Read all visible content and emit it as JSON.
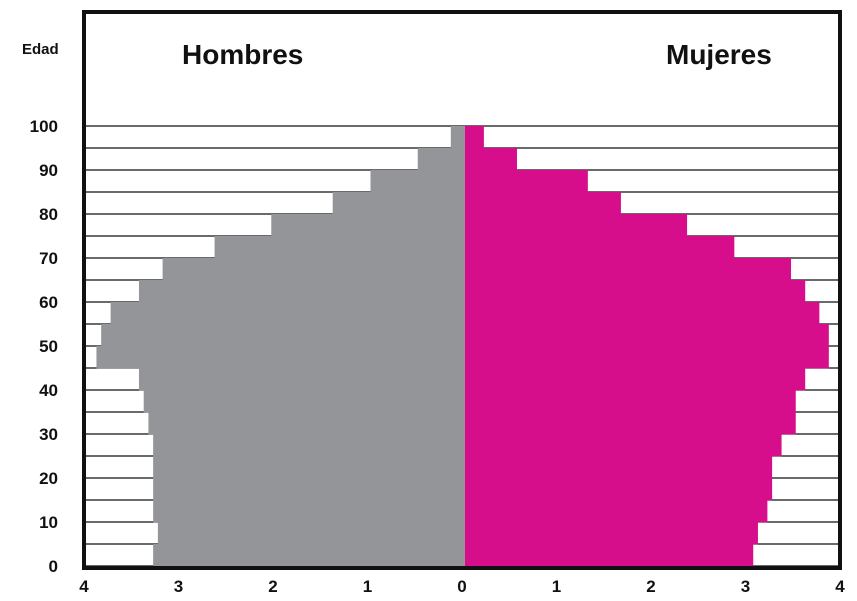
{
  "chart_data": {
    "type": "bar",
    "orientation": "horizontal-population-pyramid",
    "y_axis_label": "Edad",
    "y_ticks": [
      "0",
      "10",
      "20",
      "30",
      "40",
      "50",
      "60",
      "70",
      "80",
      "90",
      "100"
    ],
    "x_ticks": [
      "4",
      "3",
      "2",
      "1",
      "0",
      "1",
      "2",
      "3",
      "4"
    ],
    "age_groups": [
      "0-4",
      "5-9",
      "10-14",
      "15-19",
      "20-24",
      "25-29",
      "30-34",
      "35-39",
      "40-44",
      "45-49",
      "50-54",
      "55-59",
      "60-64",
      "65-69",
      "70-74",
      "75-79",
      "80-84",
      "85-89",
      "90-94",
      "95-99"
    ],
    "series": [
      {
        "name": "Hombres",
        "color": "#939598",
        "values": [
          3.3,
          3.25,
          3.3,
          3.3,
          3.3,
          3.3,
          3.35,
          3.4,
          3.45,
          3.9,
          3.85,
          3.75,
          3.45,
          3.2,
          2.65,
          2.05,
          1.4,
          1.0,
          0.5,
          0.15
        ]
      },
      {
        "name": "Mujeres",
        "color": "#d60e8c",
        "values": [
          3.05,
          3.1,
          3.2,
          3.25,
          3.25,
          3.35,
          3.5,
          3.5,
          3.6,
          3.85,
          3.85,
          3.75,
          3.6,
          3.45,
          2.85,
          2.35,
          1.65,
          1.3,
          0.55,
          0.2
        ]
      }
    ],
    "xlim": [
      -4,
      4
    ],
    "ylim": [
      0,
      100
    ]
  }
}
